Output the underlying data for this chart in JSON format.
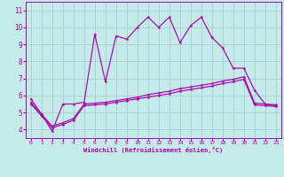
{
  "xlabel": "Windchill (Refroidissement éolien,°C)",
  "xlim": [
    -0.5,
    23.5
  ],
  "ylim": [
    3.5,
    11.5
  ],
  "yticks": [
    4,
    5,
    6,
    7,
    8,
    9,
    10,
    11
  ],
  "xticks": [
    0,
    1,
    2,
    3,
    4,
    5,
    6,
    7,
    8,
    9,
    10,
    11,
    12,
    13,
    14,
    15,
    16,
    17,
    18,
    19,
    20,
    21,
    22,
    23
  ],
  "bg_color": "#c5eaea",
  "grid_color": "#a8d4d4",
  "line_color": "#aa00aa",
  "line1_x": [
    0,
    1,
    2,
    3,
    4,
    5,
    6,
    7,
    8,
    9,
    10,
    11,
    12,
    13,
    14,
    15,
    16,
    17,
    18,
    19,
    20,
    21,
    22,
    23
  ],
  "line1_y": [
    5.8,
    4.9,
    3.9,
    5.5,
    5.5,
    5.6,
    9.6,
    6.8,
    9.5,
    9.3,
    10.0,
    10.6,
    10.0,
    10.6,
    9.1,
    10.1,
    10.6,
    9.4,
    8.8,
    7.6,
    7.6,
    6.3,
    5.5,
    5.4
  ],
  "line2_x": [
    0,
    1,
    2,
    3,
    4,
    5,
    6,
    7,
    8,
    9,
    10,
    11,
    12,
    13,
    14,
    15,
    16,
    17,
    18,
    19,
    20,
    21,
    22,
    23
  ],
  "line2_y": [
    5.5,
    4.8,
    4.1,
    4.3,
    4.55,
    5.4,
    5.45,
    5.5,
    5.6,
    5.7,
    5.8,
    5.9,
    6.0,
    6.1,
    6.25,
    6.35,
    6.45,
    6.55,
    6.7,
    6.8,
    6.95,
    5.45,
    5.4,
    5.35
  ],
  "line3_x": [
    0,
    1,
    2,
    3,
    4,
    5,
    6,
    7,
    8,
    9,
    10,
    11,
    12,
    13,
    14,
    15,
    16,
    17,
    18,
    19,
    20,
    21,
    22,
    23
  ],
  "line3_y": [
    5.6,
    4.9,
    4.2,
    4.4,
    4.65,
    5.5,
    5.55,
    5.6,
    5.7,
    5.8,
    5.9,
    6.05,
    6.15,
    6.25,
    6.4,
    6.5,
    6.6,
    6.7,
    6.85,
    6.95,
    7.1,
    5.55,
    5.5,
    5.45
  ]
}
